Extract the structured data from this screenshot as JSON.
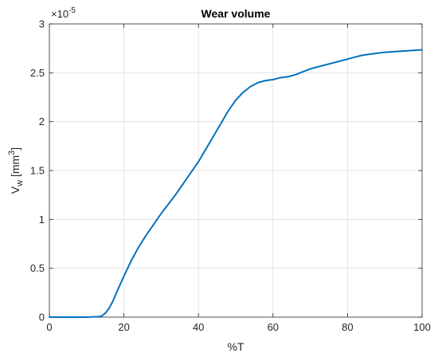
{
  "chart_data": {
    "type": "line",
    "title": "Wear volume",
    "xlabel": "%T",
    "ylabel_base": "V",
    "ylabel_sub": "w",
    "ylabel_unit_open": " [mm",
    "ylabel_unit_sup": "3",
    "ylabel_unit_close": "]",
    "exponent_base": "×10",
    "exponent_power": "-5",
    "xlim": [
      0,
      100
    ],
    "ylim": [
      0,
      3
    ],
    "y_scale_factor": 1e-05,
    "grid": true,
    "xticks": [
      0,
      20,
      40,
      60,
      80,
      100
    ],
    "xtick_labels": [
      "0",
      "20",
      "40",
      "60",
      "80",
      "100"
    ],
    "yticks": [
      0,
      0.5,
      1,
      1.5,
      2,
      2.5,
      3
    ],
    "ytick_labels": [
      "0",
      "0.5",
      "1",
      "1.5",
      "2",
      "2.5",
      "3"
    ],
    "line_color": "#0072BD",
    "series": [
      {
        "x": [
          0,
          5,
          10,
          13,
          14,
          15,
          16,
          17,
          18,
          20,
          22,
          24,
          26,
          28,
          30,
          32,
          34,
          36,
          38,
          40,
          42,
          44,
          46,
          48,
          50,
          52,
          54,
          56,
          58,
          60,
          62,
          64,
          66,
          68,
          70,
          72,
          74,
          76,
          78,
          80,
          82,
          84,
          86,
          88,
          90,
          92,
          94,
          96,
          98,
          100
        ],
        "values": [
          0,
          0,
          0,
          0.005,
          0.01,
          0.04,
          0.09,
          0.16,
          0.25,
          0.42,
          0.58,
          0.72,
          0.84,
          0.95,
          1.06,
          1.16,
          1.26,
          1.37,
          1.48,
          1.59,
          1.72,
          1.85,
          1.98,
          2.11,
          2.22,
          2.3,
          2.36,
          2.4,
          2.42,
          2.43,
          2.45,
          2.46,
          2.48,
          2.51,
          2.54,
          2.56,
          2.58,
          2.6,
          2.62,
          2.64,
          2.66,
          2.68,
          2.69,
          2.7,
          2.71,
          2.715,
          2.72,
          2.725,
          2.73,
          2.735
        ]
      }
    ]
  }
}
